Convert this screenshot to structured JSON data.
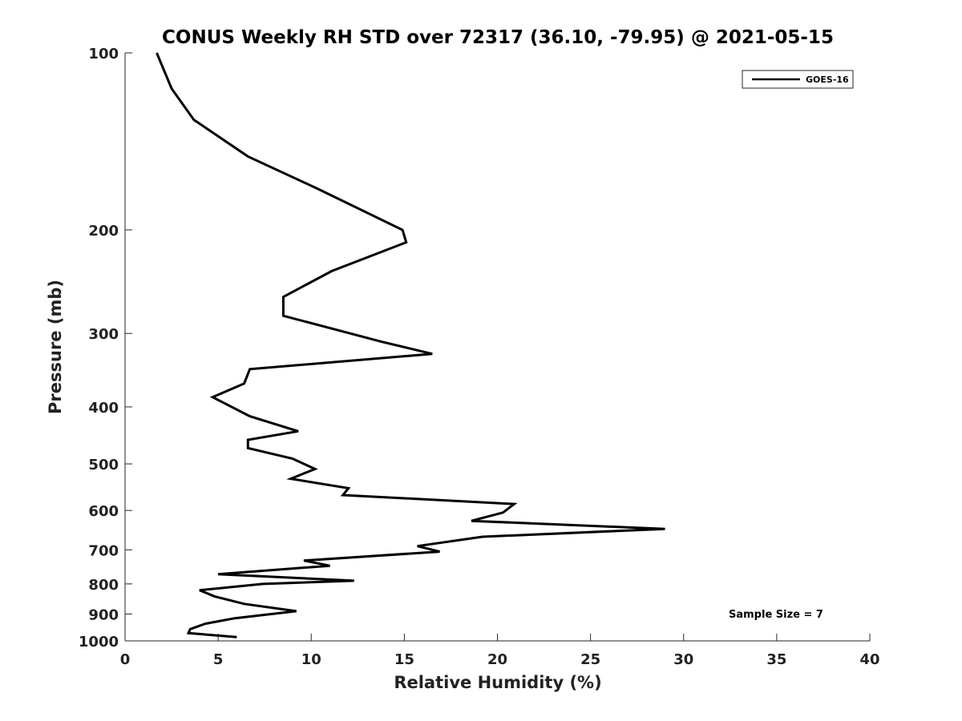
{
  "chart_data": {
    "type": "line",
    "title": "CONUS Weekly RH STD over 72317 (36.10, -79.95) @ 2021-05-15",
    "xlabel": "Relative Humidity (%)",
    "ylabel": "Pressure (mb)",
    "xlim": [
      0,
      40
    ],
    "ylim": [
      1000,
      100
    ],
    "y_scale": "log",
    "y_inverted": true,
    "x_ticks": [
      0,
      5,
      10,
      15,
      20,
      25,
      30,
      35,
      40
    ],
    "y_ticks": [
      100,
      200,
      300,
      400,
      500,
      600,
      700,
      800,
      900,
      1000
    ],
    "grid": false,
    "legend_position": "top-right",
    "annotation": "Sample Size = 7",
    "series": [
      {
        "name": "GOES-16",
        "color": "#000000",
        "x": [
          1.7,
          2.5,
          3.7,
          6.6,
          10.3,
          14.9,
          15.1,
          11.1,
          8.5,
          8.5,
          13.8,
          16.5,
          6.7,
          6.4,
          4.7,
          6.7,
          9.3,
          6.6,
          6.6,
          9.0,
          10.2,
          8.9,
          12.0,
          11.7,
          20.9,
          20.3,
          18.6,
          29.0,
          19.2,
          15.7,
          16.9,
          9.6,
          11.0,
          5.0,
          12.3,
          7.4,
          4.0,
          4.8,
          6.4,
          9.2,
          5.9,
          4.3,
          3.5,
          3.4,
          6.0
        ],
        "y": [
          100,
          115,
          130,
          150,
          170,
          200,
          210,
          235,
          260,
          280,
          310,
          325,
          345,
          365,
          385,
          415,
          440,
          455,
          470,
          490,
          510,
          530,
          550,
          565,
          585,
          605,
          625,
          645,
          665,
          690,
          705,
          730,
          745,
          770,
          790,
          800,
          820,
          840,
          865,
          890,
          915,
          935,
          955,
          970,
          985
        ]
      }
    ]
  }
}
